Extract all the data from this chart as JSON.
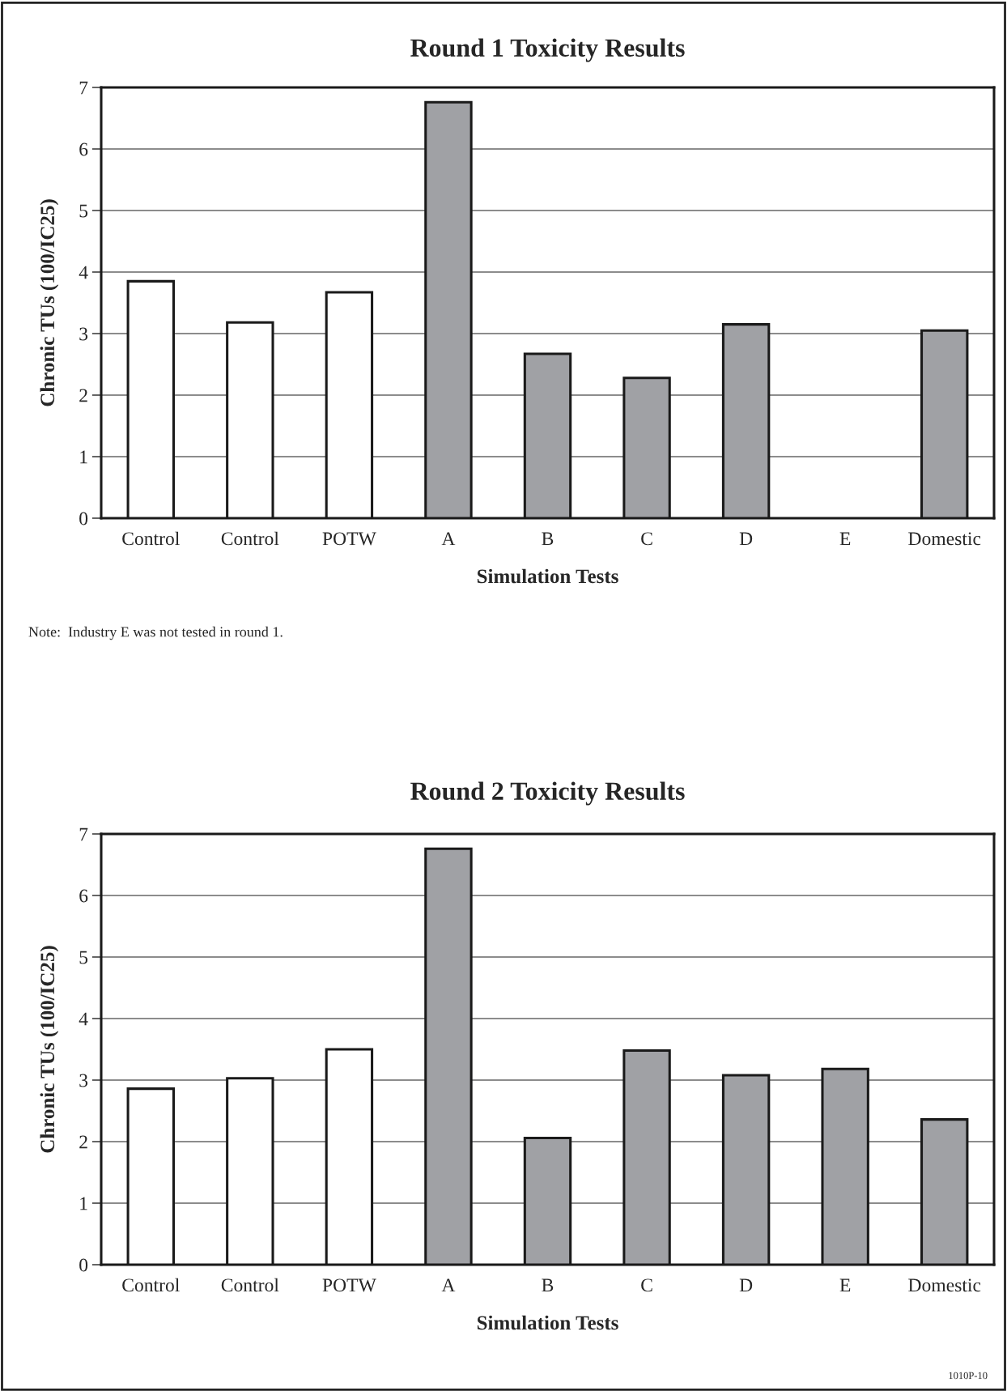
{
  "chart_data": [
    {
      "type": "bar",
      "title": "Round 1 Toxicity Results",
      "xlabel": "Simulation Tests",
      "ylabel": "Chronic TUs (100/IC25)",
      "categories": [
        "Control",
        "Control",
        "POTW",
        "A",
        "B",
        "C",
        "D",
        "E",
        "Domestic"
      ],
      "values": [
        3.85,
        3.18,
        3.67,
        6.76,
        2.67,
        2.28,
        3.15,
        null,
        3.05
      ],
      "colors": [
        "#ffffff",
        "#ffffff",
        "#ffffff",
        "#a0a1a5",
        "#a0a1a5",
        "#a0a1a5",
        "#a0a1a5",
        "#a0a1a5",
        "#a0a1a5"
      ],
      "ylim": [
        0,
        7
      ],
      "yticks": [
        0,
        1,
        2,
        3,
        4,
        5,
        6,
        7
      ],
      "grid": "y",
      "annotations": [
        "Note:  Industry E was not tested in round 1."
      ]
    },
    {
      "type": "bar",
      "title": "Round 2 Toxicity Results",
      "xlabel": "Simulation Tests",
      "ylabel": "Chronic TUs (100/IC25)",
      "categories": [
        "Control",
        "Control",
        "POTW",
        "A",
        "B",
        "C",
        "D",
        "E",
        "Domestic"
      ],
      "values": [
        2.86,
        3.03,
        3.5,
        6.76,
        2.06,
        3.48,
        3.08,
        3.18,
        2.36
      ],
      "colors": [
        "#ffffff",
        "#ffffff",
        "#ffffff",
        "#a0a1a5",
        "#a0a1a5",
        "#a0a1a5",
        "#a0a1a5",
        "#a0a1a5",
        "#a0a1a5"
      ],
      "ylim": [
        0,
        7
      ],
      "yticks": [
        0,
        1,
        2,
        3,
        4,
        5,
        6,
        7
      ],
      "grid": "y",
      "annotations": [
        "1010P-10"
      ]
    }
  ]
}
